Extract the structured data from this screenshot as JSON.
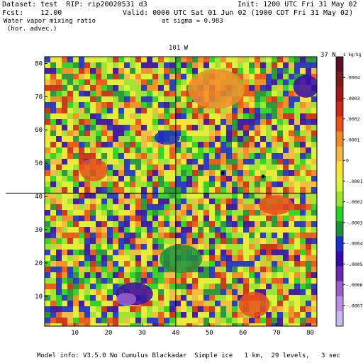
{
  "header": {
    "dataset_line": "Dataset: test  RIP: rip20020531 d3",
    "init_line": "Init: 1200 UTC Fri 31 May 02",
    "fcst_line": "Fcst:    12.00",
    "valid_line": "Valid: 0000 UTC Sat 01 Jun 02 (1900 CDT Fri 31 May 02)",
    "field_line1": "Water vapor mixing ratio",
    "sigma_line": "at sigma = 0.983",
    "field_line2": "(hor. advec.)"
  },
  "map": {
    "top_label": "101 W",
    "right_label": "37 N",
    "x_ticks": [
      "10",
      "20",
      "30",
      "40",
      "50",
      "60",
      "70",
      "80"
    ],
    "y_ticks": [
      "10",
      "20",
      "30",
      "40",
      "50",
      "60",
      "70",
      "80"
    ],
    "x_range": [
      1,
      82
    ],
    "y_range": [
      1,
      82
    ],
    "crosshair_x": 40,
    "crosshair_y": 41
  },
  "colorbar": {
    "unit_label": "s kg/kg s⁻¹",
    "labels": [
      ".0004",
      ".0003",
      ".0002",
      ".0001",
      "0",
      "-.0001",
      "-.0002",
      "-.0003",
      "-.0004",
      "-.0005",
      "-.0006",
      "-.0007"
    ],
    "colors": [
      "#5b1226",
      "#7a1c1c",
      "#a01818",
      "#c82a1c",
      "#e8501c",
      "#f08a2a",
      "#f2b845",
      "#f7e23a",
      "#d9f23a",
      "#9be236",
      "#26d026",
      "#1f8f3f",
      "#1d2fc8",
      "#3a0aa8",
      "#6b2aa8",
      "#9a5ec8",
      "#b88ee0",
      "#c8b8f0"
    ]
  },
  "footer": {
    "model_info": "Model info: V3.5.0 No Cumulus Blackadar  Simple ice   1 km,  29 levels,   3 sec"
  }
}
